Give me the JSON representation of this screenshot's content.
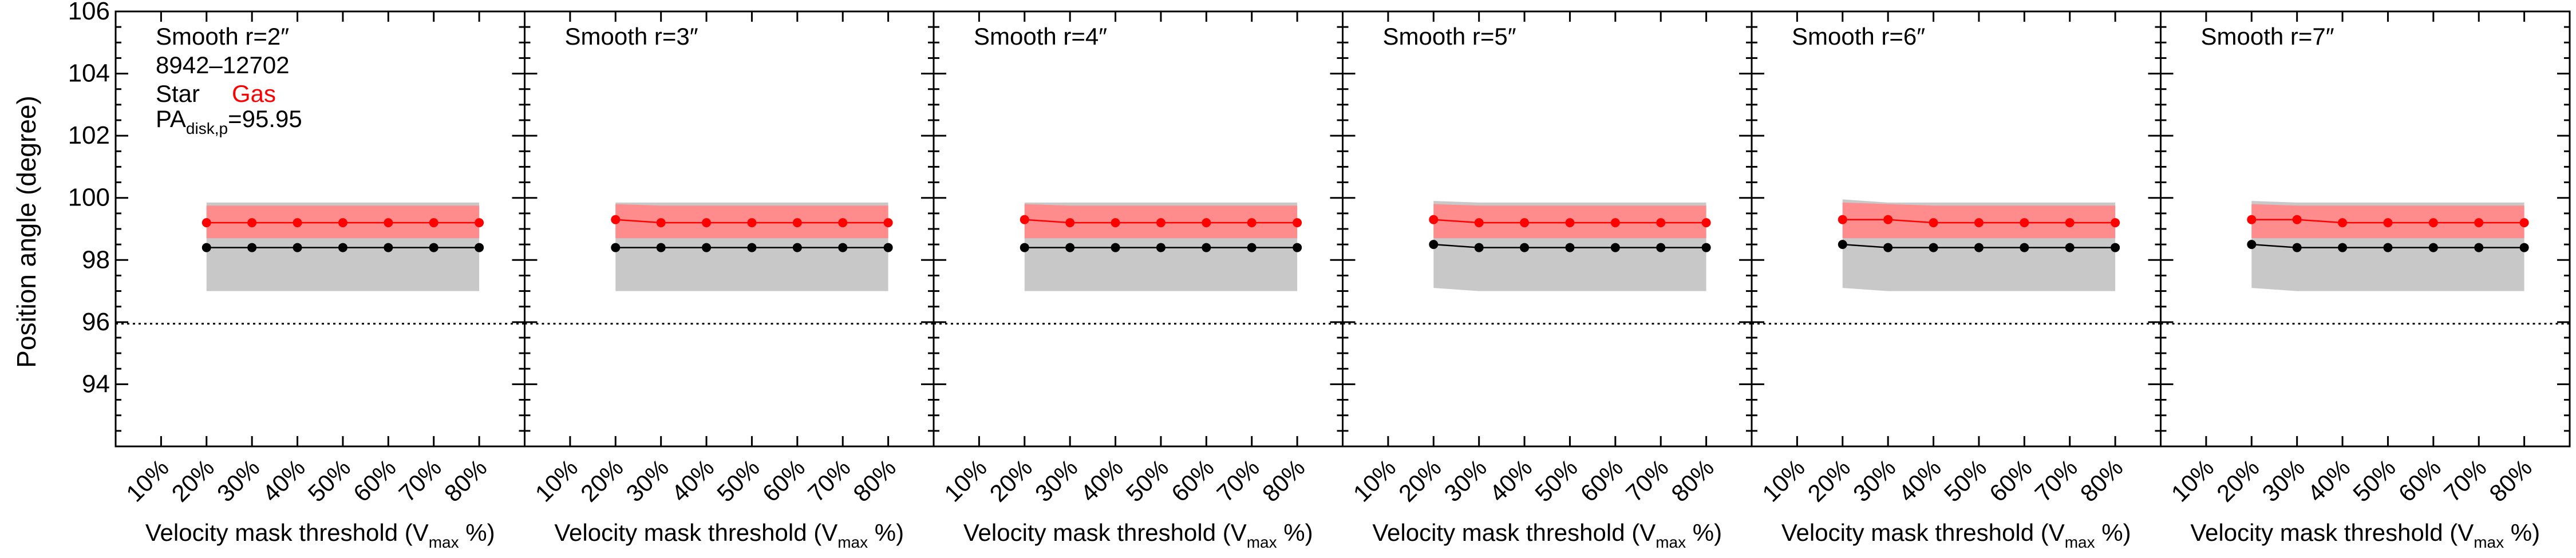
{
  "figure": {
    "ylabel": "Position angle (degree)",
    "xlabel_main": "Velocity mask threshold (V",
    "xlabel_sub": "max",
    "xlabel_tail": " %)",
    "info_id": "8942–12702",
    "info_star": "Star",
    "info_gas": "Gas",
    "info_pa_main": "PA",
    "info_pa_sub": "disk,p",
    "info_pa_value": "=95.95"
  },
  "colors": {
    "star": "#000000",
    "gas": "#ff0000",
    "star_band": "#c8c8c8",
    "gas_band": "#ff8c8c"
  },
  "chart_data": [
    {
      "type": "line",
      "title": "Smooth r=2″",
      "categories": [
        "10%",
        "20%",
        "30%",
        "40%",
        "50%",
        "60%",
        "70%",
        "80%"
      ],
      "ylim": [
        92,
        106
      ],
      "yticks": [
        94,
        96,
        98,
        100,
        102,
        104,
        106
      ],
      "reference_line": 95.95,
      "series": [
        {
          "name": "Star",
          "x": [
            "20%",
            "30%",
            "40%",
            "50%",
            "60%",
            "70%",
            "80%"
          ],
          "values": [
            98.4,
            98.4,
            98.4,
            98.4,
            98.4,
            98.4,
            98.4
          ],
          "band_low": [
            97.0,
            97.0,
            97.0,
            97.0,
            97.0,
            97.0,
            97.0
          ],
          "band_high": [
            99.85,
            99.85,
            99.85,
            99.85,
            99.85,
            99.85,
            99.85
          ]
        },
        {
          "name": "Gas",
          "x": [
            "20%",
            "30%",
            "40%",
            "50%",
            "60%",
            "70%",
            "80%"
          ],
          "values": [
            99.2,
            99.2,
            99.2,
            99.2,
            99.2,
            99.2,
            99.2
          ],
          "band_low": [
            98.7,
            98.7,
            98.7,
            98.7,
            98.7,
            98.7,
            98.7
          ],
          "band_high": [
            99.75,
            99.75,
            99.75,
            99.75,
            99.75,
            99.75,
            99.75
          ]
        }
      ]
    },
    {
      "type": "line",
      "title": "Smooth r=3″",
      "categories": [
        "10%",
        "20%",
        "30%",
        "40%",
        "50%",
        "60%",
        "70%",
        "80%"
      ],
      "ylim": [
        92,
        106
      ],
      "yticks": [
        94,
        96,
        98,
        100,
        102,
        104,
        106
      ],
      "reference_line": 95.95,
      "series": [
        {
          "name": "Star",
          "x": [
            "20%",
            "30%",
            "40%",
            "50%",
            "60%",
            "70%",
            "80%"
          ],
          "values": [
            98.4,
            98.4,
            98.4,
            98.4,
            98.4,
            98.4,
            98.4
          ],
          "band_low": [
            97.0,
            97.0,
            97.0,
            97.0,
            97.0,
            97.0,
            97.0
          ],
          "band_high": [
            99.85,
            99.85,
            99.85,
            99.85,
            99.85,
            99.85,
            99.85
          ]
        },
        {
          "name": "Gas",
          "x": [
            "20%",
            "30%",
            "40%",
            "50%",
            "60%",
            "70%",
            "80%"
          ],
          "values": [
            99.3,
            99.2,
            99.2,
            99.2,
            99.2,
            99.2,
            99.2
          ],
          "band_low": [
            98.7,
            98.7,
            98.7,
            98.7,
            98.7,
            98.7,
            98.7
          ],
          "band_high": [
            99.8,
            99.75,
            99.75,
            99.75,
            99.75,
            99.75,
            99.75
          ]
        }
      ]
    },
    {
      "type": "line",
      "title": "Smooth r=4″",
      "categories": [
        "10%",
        "20%",
        "30%",
        "40%",
        "50%",
        "60%",
        "70%",
        "80%"
      ],
      "ylim": [
        92,
        106
      ],
      "yticks": [
        94,
        96,
        98,
        100,
        102,
        104,
        106
      ],
      "reference_line": 95.95,
      "series": [
        {
          "name": "Star",
          "x": [
            "20%",
            "30%",
            "40%",
            "50%",
            "60%",
            "70%",
            "80%"
          ],
          "values": [
            98.4,
            98.4,
            98.4,
            98.4,
            98.4,
            98.4,
            98.4
          ],
          "band_low": [
            97.0,
            97.0,
            97.0,
            97.0,
            97.0,
            97.0,
            97.0
          ],
          "band_high": [
            99.85,
            99.85,
            99.85,
            99.85,
            99.85,
            99.85,
            99.85
          ]
        },
        {
          "name": "Gas",
          "x": [
            "20%",
            "30%",
            "40%",
            "50%",
            "60%",
            "70%",
            "80%"
          ],
          "values": [
            99.3,
            99.2,
            99.2,
            99.2,
            99.2,
            99.2,
            99.2
          ],
          "band_low": [
            98.7,
            98.7,
            98.7,
            98.7,
            98.7,
            98.7,
            98.7
          ],
          "band_high": [
            99.8,
            99.75,
            99.75,
            99.75,
            99.75,
            99.75,
            99.75
          ]
        }
      ]
    },
    {
      "type": "line",
      "title": "Smooth r=5″",
      "categories": [
        "10%",
        "20%",
        "30%",
        "40%",
        "50%",
        "60%",
        "70%",
        "80%"
      ],
      "ylim": [
        92,
        106
      ],
      "yticks": [
        94,
        96,
        98,
        100,
        102,
        104,
        106
      ],
      "reference_line": 95.95,
      "series": [
        {
          "name": "Star",
          "x": [
            "20%",
            "30%",
            "40%",
            "50%",
            "60%",
            "70%",
            "80%"
          ],
          "values": [
            98.5,
            98.4,
            98.4,
            98.4,
            98.4,
            98.4,
            98.4
          ],
          "band_low": [
            97.1,
            97.0,
            97.0,
            97.0,
            97.0,
            97.0,
            97.0
          ],
          "band_high": [
            99.9,
            99.85,
            99.85,
            99.85,
            99.85,
            99.85,
            99.85
          ]
        },
        {
          "name": "Gas",
          "x": [
            "20%",
            "30%",
            "40%",
            "50%",
            "60%",
            "70%",
            "80%"
          ],
          "values": [
            99.3,
            99.2,
            99.2,
            99.2,
            99.2,
            99.2,
            99.2
          ],
          "band_low": [
            98.7,
            98.7,
            98.7,
            98.7,
            98.7,
            98.7,
            98.7
          ],
          "band_high": [
            99.8,
            99.75,
            99.75,
            99.75,
            99.75,
            99.75,
            99.75
          ]
        }
      ]
    },
    {
      "type": "line",
      "title": "Smooth r=6″",
      "categories": [
        "10%",
        "20%",
        "30%",
        "40%",
        "50%",
        "60%",
        "70%",
        "80%"
      ],
      "ylim": [
        92,
        106
      ],
      "yticks": [
        94,
        96,
        98,
        100,
        102,
        104,
        106
      ],
      "reference_line": 95.95,
      "series": [
        {
          "name": "Star",
          "x": [
            "20%",
            "30%",
            "40%",
            "50%",
            "60%",
            "70%",
            "80%"
          ],
          "values": [
            98.5,
            98.4,
            98.4,
            98.4,
            98.4,
            98.4,
            98.4
          ],
          "band_low": [
            97.1,
            97.0,
            97.0,
            97.0,
            97.0,
            97.0,
            97.0
          ],
          "band_high": [
            99.95,
            99.85,
            99.85,
            99.85,
            99.85,
            99.85,
            99.85
          ]
        },
        {
          "name": "Gas",
          "x": [
            "20%",
            "30%",
            "40%",
            "50%",
            "60%",
            "70%",
            "80%"
          ],
          "values": [
            99.3,
            99.3,
            99.2,
            99.2,
            99.2,
            99.2,
            99.2
          ],
          "band_low": [
            98.7,
            98.7,
            98.7,
            98.7,
            98.7,
            98.7,
            98.7
          ],
          "band_high": [
            99.85,
            99.8,
            99.75,
            99.75,
            99.75,
            99.75,
            99.75
          ]
        }
      ]
    },
    {
      "type": "line",
      "title": "Smooth r=7″",
      "categories": [
        "10%",
        "20%",
        "30%",
        "40%",
        "50%",
        "60%",
        "70%",
        "80%"
      ],
      "ylim": [
        92,
        106
      ],
      "yticks": [
        94,
        96,
        98,
        100,
        102,
        104,
        106
      ],
      "reference_line": 95.95,
      "series": [
        {
          "name": "Star",
          "x": [
            "20%",
            "30%",
            "40%",
            "50%",
            "60%",
            "70%",
            "80%"
          ],
          "values": [
            98.5,
            98.4,
            98.4,
            98.4,
            98.4,
            98.4,
            98.4
          ],
          "band_low": [
            97.1,
            97.0,
            97.0,
            97.0,
            97.0,
            97.0,
            97.0
          ],
          "band_high": [
            99.9,
            99.85,
            99.85,
            99.85,
            99.85,
            99.85,
            99.85
          ]
        },
        {
          "name": "Gas",
          "x": [
            "20%",
            "30%",
            "40%",
            "50%",
            "60%",
            "70%",
            "80%"
          ],
          "values": [
            99.3,
            99.3,
            99.2,
            99.2,
            99.2,
            99.2,
            99.2
          ],
          "band_low": [
            98.7,
            98.7,
            98.7,
            98.7,
            98.7,
            98.7,
            98.7
          ],
          "band_high": [
            99.8,
            99.75,
            99.75,
            99.75,
            99.75,
            99.75,
            99.75
          ]
        }
      ]
    }
  ]
}
